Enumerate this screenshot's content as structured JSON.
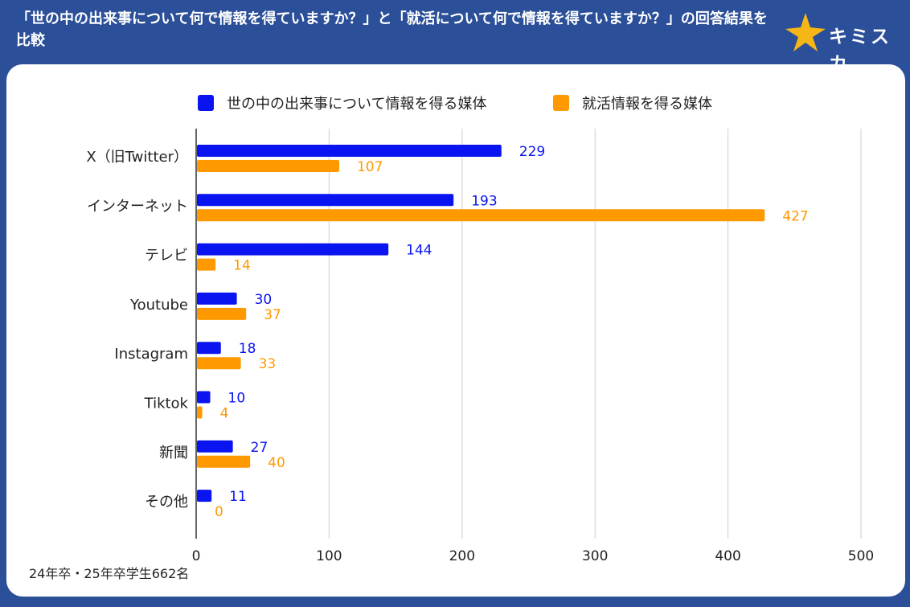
{
  "header": {
    "title": "「世の中の出来事について何で情報を得ていますか？」と「就活について何で情報を得ていますか？」の回答結果を比較",
    "brand_name": "キミスカ",
    "brand_icon": "star-icon",
    "colors": {
      "background": "#2b4f98",
      "brand_star": "#f5b616"
    }
  },
  "footnote": "24年卒・25年卒学生662名",
  "chart_data": {
    "type": "bar",
    "orientation": "horizontal",
    "title": "",
    "xlabel": "",
    "ylabel": "",
    "xlim": [
      0,
      500
    ],
    "xticks": [
      0,
      100,
      200,
      300,
      400,
      500
    ],
    "grid": true,
    "legend_position": "top",
    "categories": [
      "X（旧Twitter）",
      "インターネット",
      "テレビ",
      "Youtube",
      "Instagram",
      "Tiktok",
      "新聞",
      "その他"
    ],
    "series": [
      {
        "name": "世の中の出来事について情報を得る媒体",
        "color": "#0a14f0",
        "values": [
          229,
          193,
          144,
          30,
          18,
          10,
          27,
          11
        ]
      },
      {
        "name": "就活情報を得る媒体",
        "color": "#ff9900",
        "values": [
          107,
          427,
          14,
          37,
          33,
          4,
          40,
          0
        ]
      }
    ]
  }
}
